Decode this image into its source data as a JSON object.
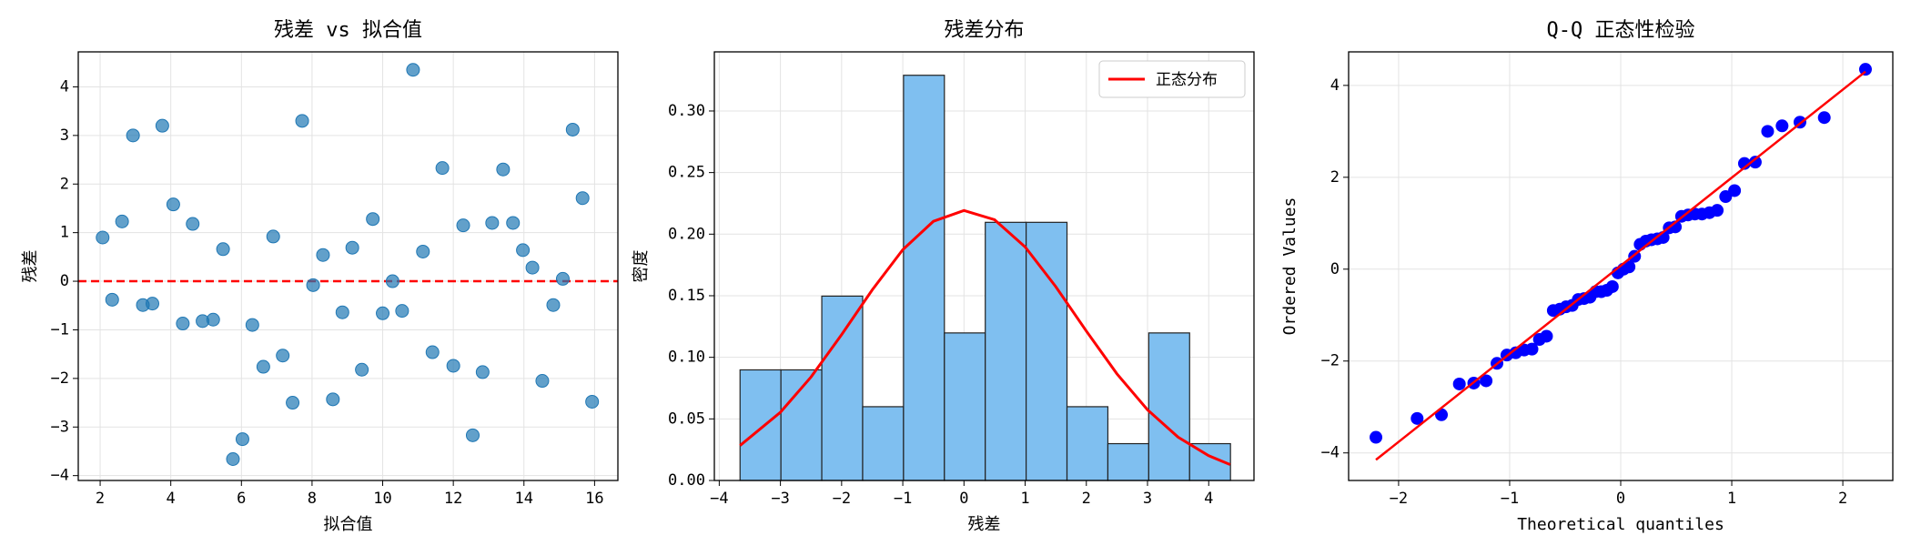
{
  "chart_data": [
    {
      "type": "scatter",
      "title": "残差 vs 拟合值",
      "x_label": "拟合值",
      "y_label": "残差",
      "color": "#1f77b4",
      "grid": true,
      "hline": 0,
      "hline_color": "#ff0000",
      "x": [
        2.07,
        2.34,
        2.62,
        2.93,
        3.21,
        3.48,
        3.76,
        4.07,
        4.34,
        4.62,
        4.9,
        5.2,
        5.48,
        5.76,
        6.03,
        6.31,
        6.62,
        6.9,
        7.17,
        7.45,
        7.72,
        8.03,
        8.31,
        8.59,
        8.86,
        9.14,
        9.41,
        9.72,
        10.0,
        10.28,
        10.55,
        10.86,
        11.14,
        11.41,
        11.69,
        12.0,
        12.28,
        12.55,
        12.83,
        13.1,
        13.41,
        13.69,
        13.97,
        14.24,
        14.52,
        14.83,
        15.1,
        15.38,
        15.66,
        15.93
      ],
      "y": [
        0.9,
        -0.38,
        1.23,
        3.0,
        -0.49,
        -0.46,
        3.2,
        1.58,
        -0.87,
        1.18,
        -0.82,
        -0.79,
        0.66,
        -3.66,
        -3.25,
        -0.9,
        -1.76,
        0.92,
        -1.53,
        -2.5,
        3.3,
        -0.08,
        0.54,
        -2.43,
        -0.64,
        0.69,
        -1.82,
        1.28,
        -0.66,
        0.0,
        -0.61,
        4.35,
        0.61,
        -1.46,
        2.33,
        -1.74,
        1.15,
        -3.17,
        -1.87,
        1.2,
        2.3,
        1.2,
        0.64,
        0.28,
        -2.05,
        -0.49,
        0.05,
        3.12,
        1.71,
        -2.48
      ],
      "xlim": [
        1.38,
        16.66
      ],
      "xticks": [
        2,
        4,
        6,
        8,
        10,
        12,
        14,
        16
      ],
      "ylim": [
        -4.1,
        4.72
      ],
      "yticks": [
        {
          "value": -4,
          "label": "−4"
        },
        {
          "value": -3,
          "label": "−3"
        },
        {
          "value": -2,
          "label": "−2"
        },
        {
          "value": -1,
          "label": "−1"
        },
        0,
        1,
        2,
        3,
        4
      ]
    },
    {
      "type": "histogram",
      "title": "残差分布",
      "x_label": "残差",
      "y_label": "密度",
      "color": "#7fbff0",
      "grid": true,
      "legend": "upper right",
      "bins": [
        -3.66,
        -2.992,
        -2.324,
        -1.656,
        -0.988,
        -0.32,
        0.348,
        1.016,
        1.684,
        2.352,
        3.02,
        3.688,
        4.356
      ],
      "values": [
        0.0898,
        0.0898,
        0.1497,
        0.0599,
        0.329,
        0.1198,
        0.2096,
        0.2096,
        0.0599,
        0.0299,
        0.1198,
        0.0299
      ],
      "line": {
        "name": "正态分布",
        "color": "#ff0000",
        "x": [
          -3.66,
          -3,
          -2.5,
          -2,
          -1.5,
          -1,
          -0.5,
          0,
          0.5,
          1,
          1.5,
          2,
          2.5,
          3,
          3.5,
          4,
          4.35
        ],
        "y": [
          0.0284,
          0.0554,
          0.084,
          0.1184,
          0.1547,
          0.1874,
          0.2104,
          0.2192,
          0.2117,
          0.1896,
          0.1574,
          0.1213,
          0.0866,
          0.0574,
          0.0352,
          0.0201,
          0.0129
        ]
      },
      "xlim": [
        -4.08,
        4.74
      ],
      "xticks": [
        {
          "value": -4,
          "label": "−4"
        },
        {
          "value": -3,
          "label": "−3"
        },
        {
          "value": -2,
          "label": "−2"
        },
        {
          "value": -1,
          "label": "−1"
        },
        0,
        1,
        2,
        3,
        4
      ],
      "ylim": [
        0,
        0.348
      ],
      "yticks": [
        {
          "value": 0,
          "label": "0.00"
        },
        {
          "value": 0.05,
          "label": "0.05"
        },
        {
          "value": 0.1,
          "label": "0.10"
        },
        {
          "value": 0.15,
          "label": "0.15"
        },
        {
          "value": 0.2,
          "label": "0.20"
        },
        {
          "value": 0.25,
          "label": "0.25"
        },
        {
          "value": 0.3,
          "label": "0.30"
        }
      ]
    },
    {
      "type": "qq",
      "title": "Q-Q 正态性检验",
      "x_label": "Theoretical quantiles",
      "y_label": "Ordered Values",
      "color": "#0000ff",
      "grid": true,
      "x": [
        -2.204,
        -1.833,
        -1.614,
        -1.453,
        -1.323,
        -1.212,
        -1.114,
        -1.025,
        -0.945,
        -0.869,
        -0.799,
        -0.732,
        -0.668,
        -0.607,
        -0.548,
        -0.492,
        -0.437,
        -0.382,
        -0.33,
        -0.277,
        -0.226,
        -0.175,
        -0.125,
        -0.075,
        -0.025,
        0.025,
        0.075,
        0.125,
        0.175,
        0.226,
        0.277,
        0.33,
        0.382,
        0.437,
        0.492,
        0.548,
        0.607,
        0.668,
        0.732,
        0.799,
        0.869,
        0.945,
        1.025,
        1.114,
        1.212,
        1.323,
        1.453,
        1.614,
        1.833,
        2.204
      ],
      "y": [
        -3.66,
        -3.25,
        -3.17,
        -2.5,
        -2.48,
        -2.43,
        -2.05,
        -1.87,
        -1.82,
        -1.76,
        -1.74,
        -1.53,
        -1.46,
        -0.9,
        -0.87,
        -0.82,
        -0.79,
        -0.66,
        -0.64,
        -0.61,
        -0.49,
        -0.49,
        -0.46,
        -0.38,
        -0.08,
        0.0,
        0.05,
        0.28,
        0.54,
        0.61,
        0.64,
        0.66,
        0.69,
        0.9,
        0.92,
        1.15,
        1.18,
        1.2,
        1.2,
        1.23,
        1.28,
        1.58,
        1.71,
        2.3,
        2.33,
        3.0,
        3.12,
        3.2,
        3.3,
        4.35
      ],
      "fit": {
        "color": "#ff0000",
        "x": [
          -2.204,
          2.204
        ],
        "y": [
          -4.15,
          4.3
        ]
      },
      "xlim": [
        -2.45,
        2.45
      ],
      "xticks": [
        {
          "value": -2,
          "label": "−2"
        },
        {
          "value": -1,
          "label": "−1"
        },
        0,
        1,
        2
      ],
      "ylim": [
        -4.6,
        4.73
      ],
      "yticks": [
        {
          "value": -4,
          "label": "−4"
        },
        {
          "value": -2,
          "label": "−2"
        },
        0,
        2,
        4
      ]
    }
  ]
}
